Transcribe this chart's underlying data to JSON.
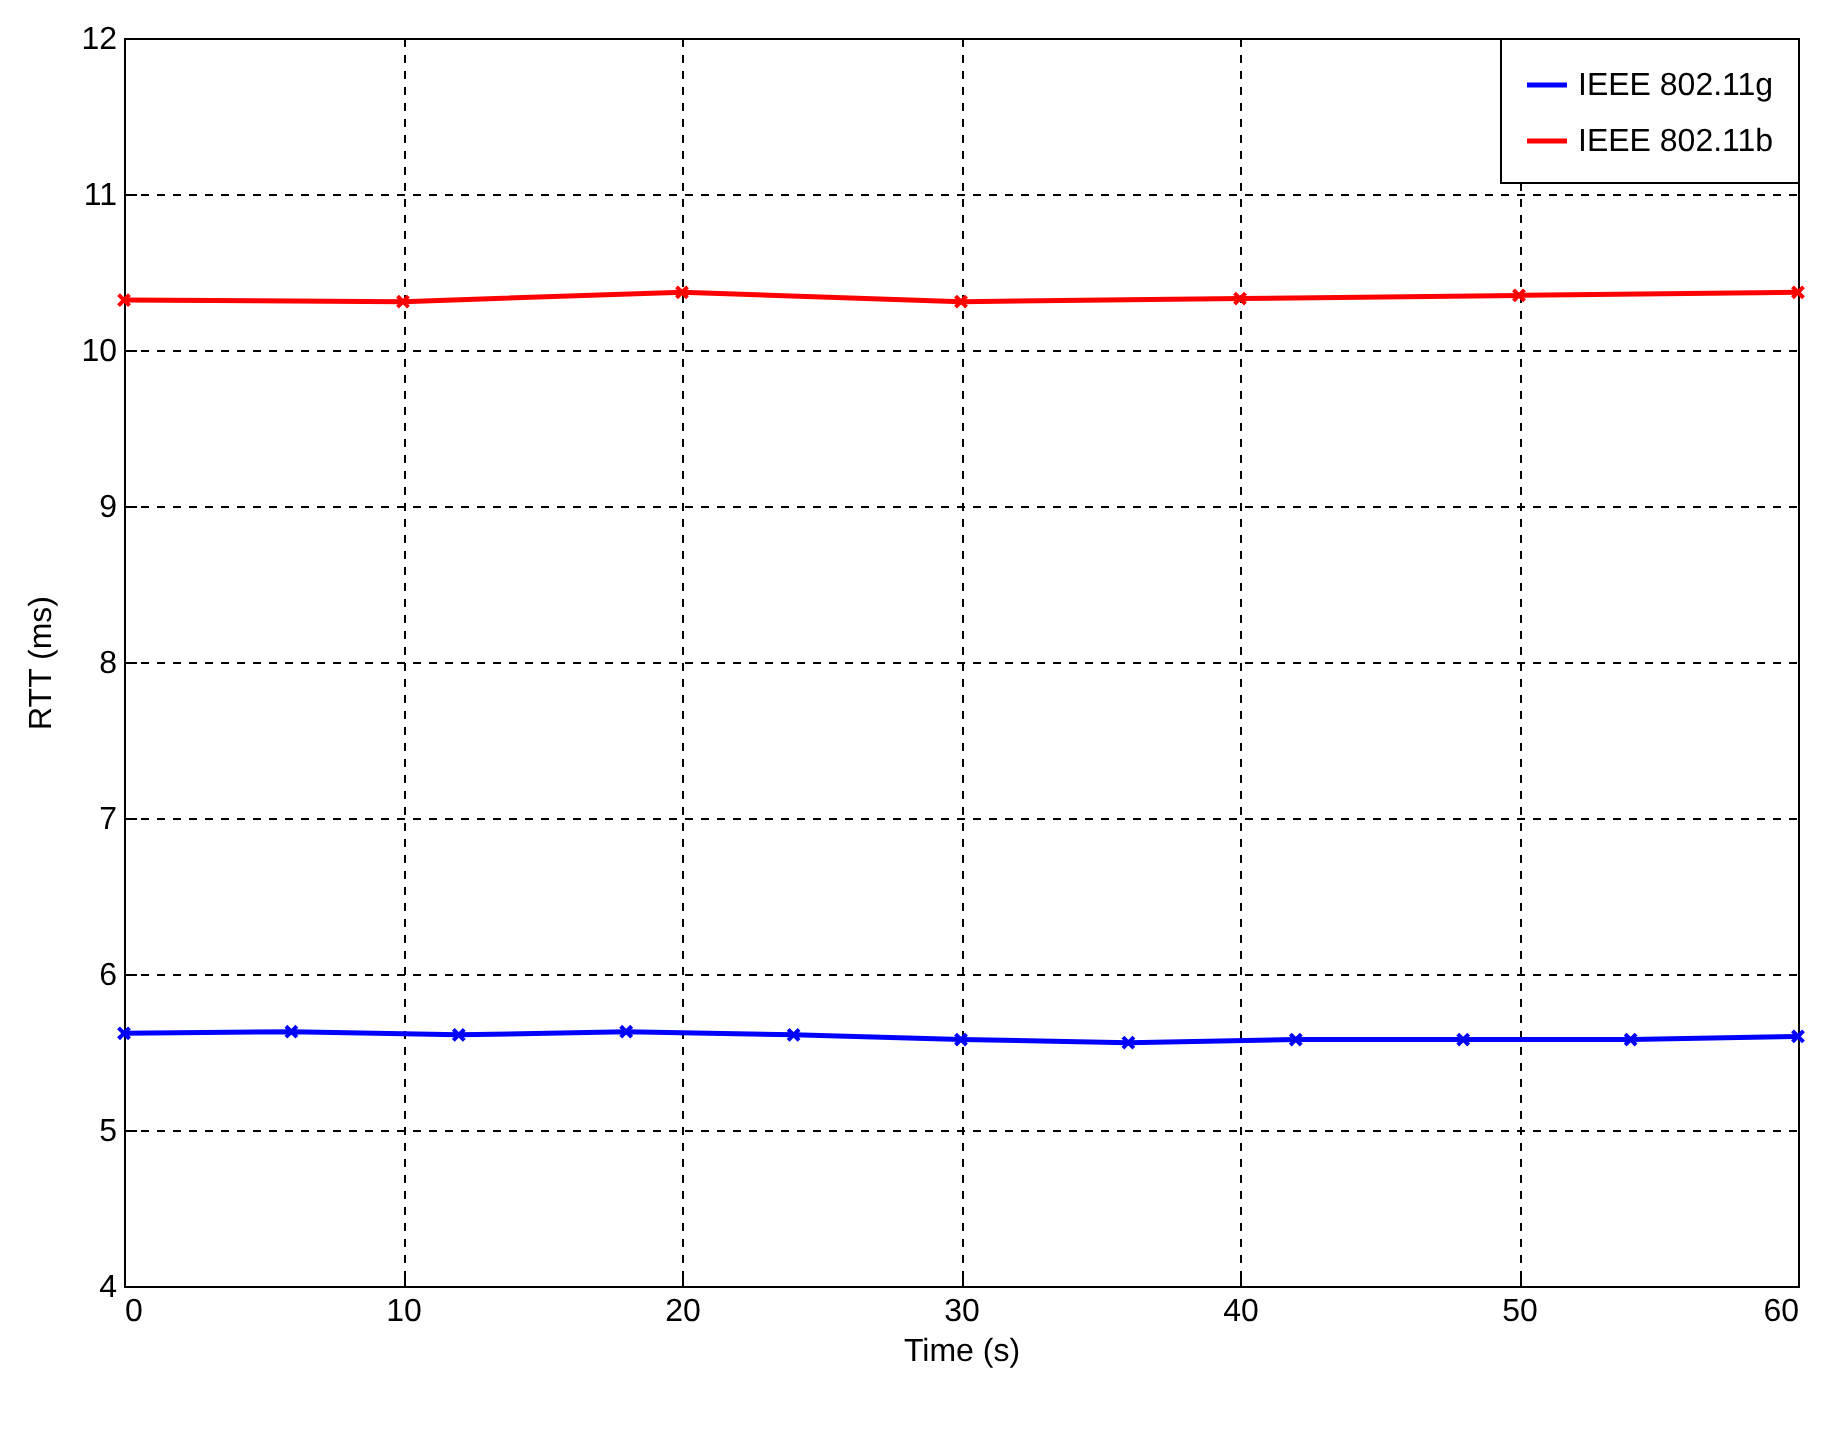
{
  "chart_data": {
    "type": "line",
    "xlabel": "Time (s)",
    "ylabel": "RTT (ms)",
    "xlim": [
      0,
      60
    ],
    "xticks": [
      0,
      10,
      20,
      30,
      40,
      50,
      60
    ],
    "ylim": [
      4,
      12
    ],
    "yticks": [
      4,
      5,
      6,
      7,
      8,
      9,
      10,
      11,
      12
    ],
    "grid": true,
    "legend": "top right",
    "marker": "cross",
    "line_style": "solid",
    "series": [
      {
        "name": "IEEE 802.11g",
        "color": "#0000ff",
        "x": [
          0,
          6,
          12,
          18,
          24,
          30,
          36,
          42,
          48,
          54,
          60
        ],
        "values": [
          5.62,
          5.63,
          5.61,
          5.63,
          5.61,
          5.58,
          5.56,
          5.58,
          5.58,
          5.58,
          5.6
        ]
      },
      {
        "name": "IEEE 802.11b",
        "color": "#ff0000",
        "x": [
          0,
          10,
          20,
          30,
          40,
          50,
          60
        ],
        "values": [
          10.32,
          10.31,
          10.37,
          10.31,
          10.33,
          10.35,
          10.37
        ]
      }
    ]
  }
}
